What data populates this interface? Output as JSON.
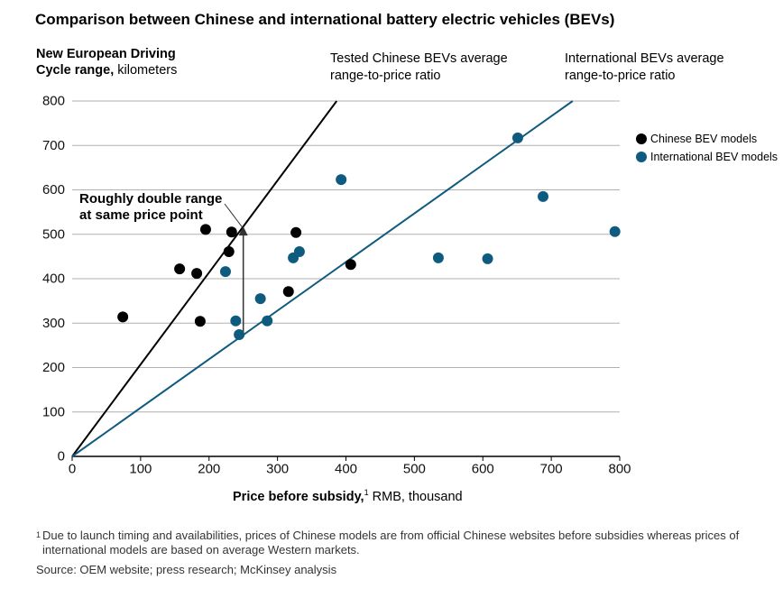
{
  "chart_data": {
    "type": "scatter",
    "title": "Comparison between Chinese and international battery electric vehicles (BEVs)",
    "ylabel": {
      "line1": "New European Driving",
      "line2_bold": "Cycle range,",
      "line2_rest": "kilometers"
    },
    "xlabel": {
      "bold": "Price before subsidy,",
      "footnote_mark": "1",
      "rest": "RMB, thousand"
    },
    "xlim": [
      0,
      800
    ],
    "ylim": [
      0,
      800
    ],
    "xticks": [
      0,
      100,
      200,
      300,
      400,
      500,
      600,
      700,
      800
    ],
    "yticks": [
      0,
      100,
      200,
      300,
      400,
      500,
      600,
      700,
      800
    ],
    "grid": true,
    "series": [
      {
        "name": "Chinese BEV models",
        "color": "#000000",
        "points": [
          [
            74,
            314
          ],
          [
            157,
            422
          ],
          [
            182,
            412
          ],
          [
            187,
            304
          ],
          [
            195,
            511
          ],
          [
            229,
            461
          ],
          [
            233,
            505
          ],
          [
            316,
            371
          ],
          [
            327,
            504
          ],
          [
            407,
            432
          ]
        ]
      },
      {
        "name": "International BEV models",
        "color": "#0f5b7f",
        "points": [
          [
            224,
            416
          ],
          [
            239,
            305
          ],
          [
            244,
            274
          ],
          [
            275,
            355
          ],
          [
            285,
            305
          ],
          [
            323,
            447
          ],
          [
            332,
            461
          ],
          [
            393,
            623
          ],
          [
            535,
            447
          ],
          [
            607,
            445
          ],
          [
            651,
            717
          ],
          [
            688,
            585
          ],
          [
            793,
            506
          ]
        ]
      }
    ],
    "trend_lines": [
      {
        "label_lines": [
          "Tested Chinese BEVs average",
          "range-to-price ratio"
        ],
        "ratio": 2.07,
        "color": "#000000"
      },
      {
        "label_lines": [
          "International BEVs average",
          "range-to-price ratio"
        ],
        "ratio": 1.094,
        "color": "#0f5b7f"
      }
    ],
    "annotation": {
      "label_lines": [
        "Roughly double range",
        "at same price point"
      ],
      "x": 250
    }
  },
  "footnote": {
    "mark": "1",
    "lines": [
      "Due to launch timing and availabilities, prices of Chinese models are from official Chinese websites before subsidies whereas prices of",
      "international models are based on average Western markets."
    ]
  },
  "source": "Source: OEM website; press research; McKinsey analysis"
}
